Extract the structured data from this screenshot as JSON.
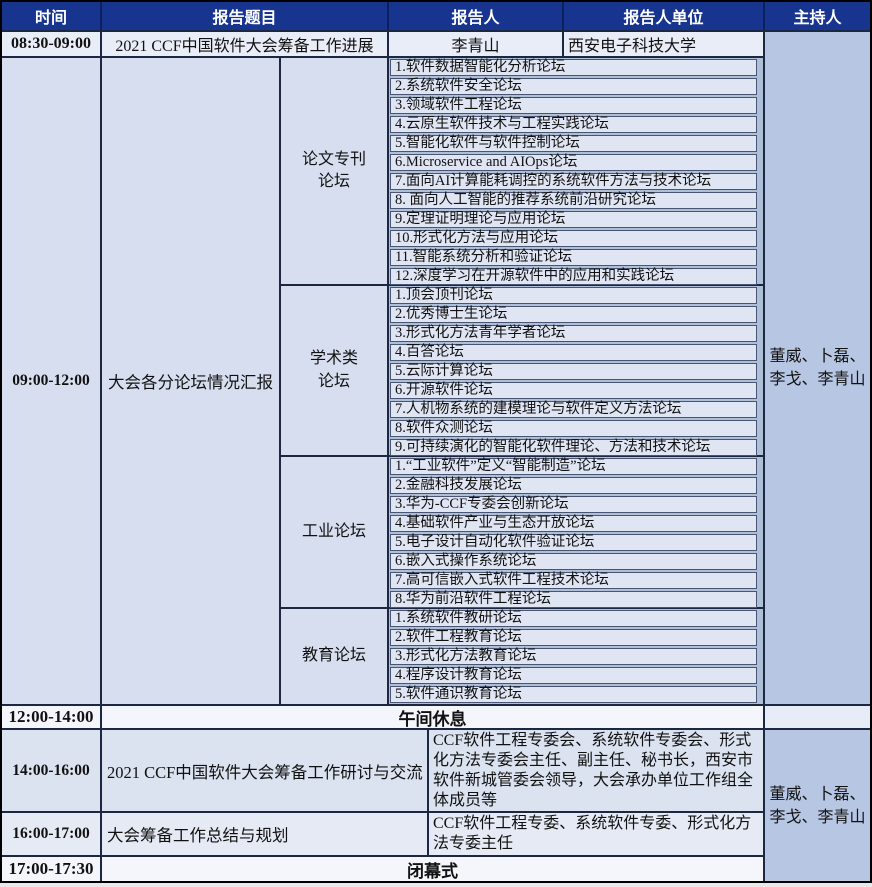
{
  "colors": {
    "header_bg": "#17348e",
    "host_cell_bg": "#b7c7e3",
    "grid_line": "#1c2742",
    "item_bg": "#dfe5f3"
  },
  "table": {
    "header": {
      "time": "时间",
      "title": "报告题目",
      "speaker": "报告人",
      "org": "报告人单位",
      "host": "主持人"
    },
    "opening": {
      "time": "08:30-09:00",
      "title": "2021 CCF中国软件大会筹备工作进展",
      "speaker": "李青山",
      "org": "西安电子科技大学"
    },
    "session": {
      "time": "09:00-12:00",
      "title": "大会各分论坛情况汇报",
      "host": "董威、卜磊、\n李戈、李青山",
      "groups": [
        {
          "name": "论文专刊\n论坛",
          "items": [
            "1.软件数据智能化分析论坛",
            "2.系统软件安全论坛",
            "3.领域软件工程论坛",
            "4.云原生软件技术与工程实践论坛",
            "5.智能化软件与软件控制论坛",
            "6.Microservice and AIOps论坛",
            "7.面向AI计算能耗调控的系统软件方法与技术论坛",
            "8. 面向人工智能的推荐系统前沿研究论坛",
            "9.定理证明理论与应用论坛",
            "10.形式化方法与应用论坛",
            "11.智能系统分析和验证论坛",
            "12.深度学习在开源软件中的应用和实践论坛"
          ]
        },
        {
          "name": "学术类\n论坛",
          "items": [
            "1.顶会顶刊论坛",
            "2.优秀博士生论坛",
            "3.形式化方法青年学者论坛",
            "4.百答论坛",
            "5.云际计算论坛",
            "6.开源软件论坛",
            "7.人机物系统的建模理论与软件定义方法论坛",
            "8.软件众测论坛",
            "9.可持续演化的智能化软件理论、方法和技术论坛"
          ]
        },
        {
          "name": "工业论坛",
          "items": [
            "1.“工业软件”定义“智能制造”论坛",
            "2.金融科技发展论坛",
            "3.华为-CCF专委会创新论坛",
            "4.基础软件产业与生态开放论坛",
            "5.电子设计自动化软件验证论坛",
            "6.嵌入式操作系统论坛",
            "7.高可信嵌入式软件工程技术论坛",
            "8.华为前沿软件工程论坛"
          ]
        },
        {
          "name": "教育论坛",
          "items": [
            "1.系统软件教研论坛",
            "2.软件工程教育论坛",
            "3.形式化方法教育论坛",
            "4.程序设计教育论坛",
            "5.软件通识教育论坛"
          ]
        }
      ]
    },
    "lunch": {
      "time": "12:00-14:00",
      "label": "午间休息"
    },
    "discussion": {
      "time": "14:00-16:00",
      "title": "2021 CCF中国软件大会筹备工作研讨与交流",
      "attendees": "CCF软件工程专委会、系统软件专委会、形式化方法专委会主任、副主任、秘书长，西安市软件新城管委会领导，大会承办单位工作组全体成员等"
    },
    "summary": {
      "time": "16:00-17:00",
      "title": "大会筹备工作总结与规划",
      "attendees": "CCF软件工程专委、系统软件专委、形式化方法专委主任"
    },
    "closing": {
      "time": "17:00-17:30",
      "label": "闭幕式"
    },
    "afternoon_host": "董威、卜磊、\n李戈、李青山"
  }
}
